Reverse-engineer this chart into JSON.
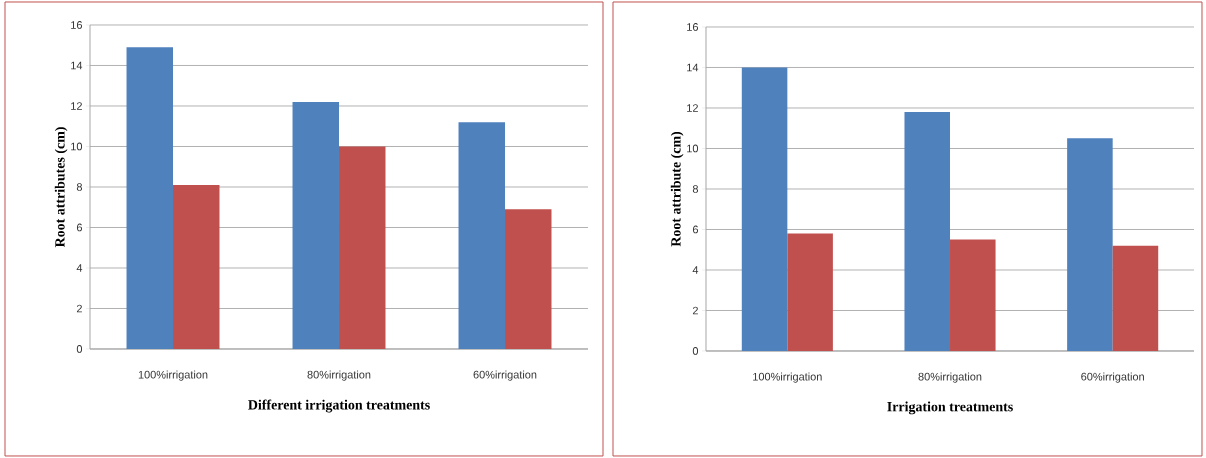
{
  "chart_data": [
    {
      "type": "bar",
      "categories": [
        "100%irrigation",
        "80%irrigation",
        "60%irrigation"
      ],
      "xlabel": "Different irrigation treatments",
      "ylabel": "Root attributes (cm)",
      "ylim": [
        0,
        16
      ],
      "yticks": [
        0,
        2,
        4,
        6,
        8,
        10,
        12,
        14,
        16
      ],
      "grid": "y",
      "series": [
        {
          "color": "#4f81bd",
          "values": [
            14.9,
            12.2,
            11.2
          ]
        },
        {
          "color": "#c0504d",
          "values": [
            8.1,
            10,
            6.9
          ]
        }
      ]
    },
    {
      "type": "bar",
      "categories": [
        "100%irrigation",
        "80%irrigation",
        "60%irrigation"
      ],
      "xlabel": "Irrigation treatments",
      "ylabel": "Root attribute (cm)",
      "ylim": [
        0,
        16
      ],
      "yticks": [
        0,
        2,
        4,
        6,
        8,
        10,
        12,
        14,
        16
      ],
      "grid": "y",
      "series": [
        {
          "color": "#4f81bd",
          "values": [
            14.0,
            11.8,
            10.5
          ]
        },
        {
          "color": "#c0504d",
          "values": [
            5.8,
            5.5,
            5.2
          ]
        }
      ]
    }
  ]
}
